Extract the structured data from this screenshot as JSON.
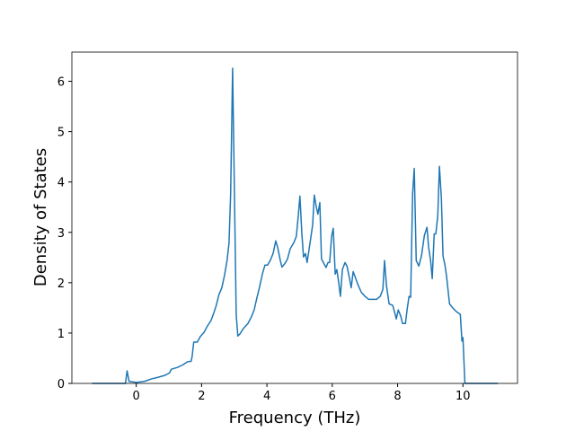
{
  "chart_data": {
    "type": "line",
    "xlabel": "Frequency (THz)",
    "ylabel": "Density of States",
    "x": [
      -1.35,
      -0.33,
      -0.28,
      -0.22,
      0,
      0.25,
      0.47,
      0.66,
      0.88,
      1.02,
      1.07,
      1.27,
      1.43,
      1.57,
      1.68,
      1.71,
      1.76,
      1.87,
      1.96,
      2.07,
      2.18,
      2.29,
      2.37,
      2.45,
      2.53,
      2.62,
      2.7,
      2.78,
      2.84,
      2.89,
      2.95,
      3.0,
      3.06,
      3.11,
      3.17,
      3.28,
      3.42,
      3.53,
      3.61,
      3.69,
      3.77,
      3.86,
      3.94,
      4.02,
      4.1,
      4.19,
      4.27,
      4.33,
      4.41,
      4.46,
      4.55,
      4.63,
      4.71,
      4.82,
      4.9,
      4.96,
      5.01,
      5.07,
      5.12,
      5.18,
      5.23,
      5.32,
      5.4,
      5.45,
      5.51,
      5.56,
      5.62,
      5.67,
      5.73,
      5.81,
      5.87,
      5.92,
      5.98,
      6.03,
      6.09,
      6.14,
      6.2,
      6.25,
      6.31,
      6.39,
      6.45,
      6.53,
      6.58,
      6.64,
      6.72,
      6.8,
      6.89,
      7.0,
      7.11,
      7.22,
      7.36,
      7.47,
      7.55,
      7.6,
      7.66,
      7.74,
      7.85,
      7.91,
      7.96,
      8.02,
      8.1,
      8.15,
      8.24,
      8.29,
      8.35,
      8.4,
      8.46,
      8.51,
      8.57,
      8.65,
      8.73,
      8.82,
      8.9,
      8.95,
      9.01,
      9.06,
      9.12,
      9.17,
      9.23,
      9.28,
      9.34,
      9.39,
      9.45,
      9.5,
      9.59,
      9.7,
      9.81,
      9.92,
      9.97,
      10.0,
      10.06,
      11.07
    ],
    "series": [
      {
        "color": "#1f77b4",
        "values": [
          0,
          0,
          0.25,
          0.04,
          0.02,
          0.04,
          0.09,
          0.12,
          0.16,
          0.21,
          0.28,
          0.32,
          0.37,
          0.43,
          0.44,
          0.53,
          0.82,
          0.82,
          0.93,
          1.01,
          1.14,
          1.25,
          1.39,
          1.55,
          1.76,
          1.9,
          2.14,
          2.44,
          2.79,
          3.77,
          6.26,
          4.04,
          1.37,
          0.94,
          0.98,
          1.09,
          1.19,
          1.33,
          1.46,
          1.69,
          1.9,
          2.17,
          2.35,
          2.35,
          2.44,
          2.58,
          2.83,
          2.7,
          2.44,
          2.31,
          2.38,
          2.47,
          2.67,
          2.79,
          2.92,
          3.33,
          3.72,
          2.97,
          2.51,
          2.58,
          2.4,
          2.79,
          3.15,
          3.74,
          3.51,
          3.36,
          3.59,
          2.47,
          2.4,
          2.3,
          2.4,
          2.4,
          2.92,
          3.08,
          2.17,
          2.26,
          1.99,
          1.73,
          2.26,
          2.4,
          2.33,
          2.08,
          1.9,
          2.22,
          2.08,
          1.94,
          1.81,
          1.73,
          1.67,
          1.67,
          1.67,
          1.73,
          1.87,
          2.44,
          1.94,
          1.58,
          1.55,
          1.41,
          1.28,
          1.46,
          1.33,
          1.19,
          1.19,
          1.46,
          1.73,
          1.71,
          3.77,
          4.27,
          2.44,
          2.33,
          2.53,
          2.94,
          3.1,
          2.7,
          2.44,
          2.08,
          2.97,
          2.97,
          3.33,
          4.31,
          3.68,
          2.53,
          2.35,
          2.12,
          1.58,
          1.49,
          1.42,
          1.37,
          0.84,
          0.91,
          0,
          0
        ]
      }
    ],
    "xlim": [
      -1.97,
      11.67
    ],
    "xticks": [
      0,
      2,
      4,
      6,
      8,
      10
    ],
    "ylim": [
      0,
      6.58
    ],
    "yticks": [
      0,
      1,
      2,
      3,
      4,
      5,
      6
    ]
  }
}
